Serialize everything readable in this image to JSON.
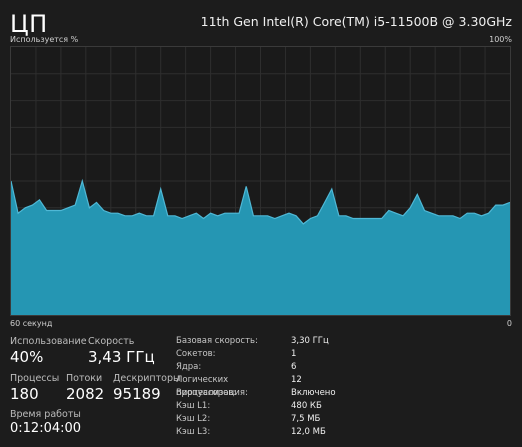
{
  "header": {
    "title": "ЦП",
    "cpu_model": "11th Gen Intel(R) Core(TM) i5-11500B @ 3.30GHz"
  },
  "graph": {
    "y_label": "Используется %",
    "y_max_label": "100%",
    "x_left_label": "60 секунд",
    "x_right_label": "0",
    "fill_color": "#2596b3",
    "line_color": "#4fb8d6",
    "grid_color": "#2e2e2e"
  },
  "chart_data": {
    "type": "area",
    "ylim": [
      0,
      100
    ],
    "values": [
      50,
      38,
      40,
      41,
      43,
      39,
      39,
      39,
      40,
      41,
      50,
      40,
      42,
      39,
      38,
      38,
      37,
      37,
      38,
      37,
      37,
      47,
      37,
      37,
      36,
      37,
      38,
      36,
      38,
      37,
      38,
      38,
      38,
      48,
      37,
      37,
      37,
      36,
      37,
      38,
      37,
      34,
      36,
      37,
      42,
      47,
      37,
      37,
      36,
      36,
      36,
      36,
      36,
      39,
      38,
      37,
      40,
      45,
      39,
      38,
      37,
      37,
      37,
      36,
      38,
      38,
      37,
      38,
      41,
      41,
      42
    ]
  },
  "stats": {
    "usage_label": "Использование",
    "usage_value": "40%",
    "speed_label": "Скорость",
    "speed_value": "3,43 ГГц",
    "processes_label": "Процессы",
    "processes_value": "180",
    "threads_label": "Потоки",
    "threads_value": "2082",
    "handles_label": "Дескрипторы",
    "handles_value": "95189",
    "uptime_label": "Время работы",
    "uptime_value": "0:12:04:00"
  },
  "info": [
    {
      "label": "Базовая скорость:",
      "value": "3,30 ГГц"
    },
    {
      "label": "Сокетов:",
      "value": "1"
    },
    {
      "label": "Ядра:",
      "value": "6"
    },
    {
      "label": "Логических процессоров:",
      "value": "12"
    },
    {
      "label": "Виртуализация:",
      "value": "Включено"
    },
    {
      "label": "Кэш L1:",
      "value": "480 КБ"
    },
    {
      "label": "Кэш L2:",
      "value": "7,5 МБ"
    },
    {
      "label": "Кэш L3:",
      "value": "12,0 МБ"
    }
  ]
}
